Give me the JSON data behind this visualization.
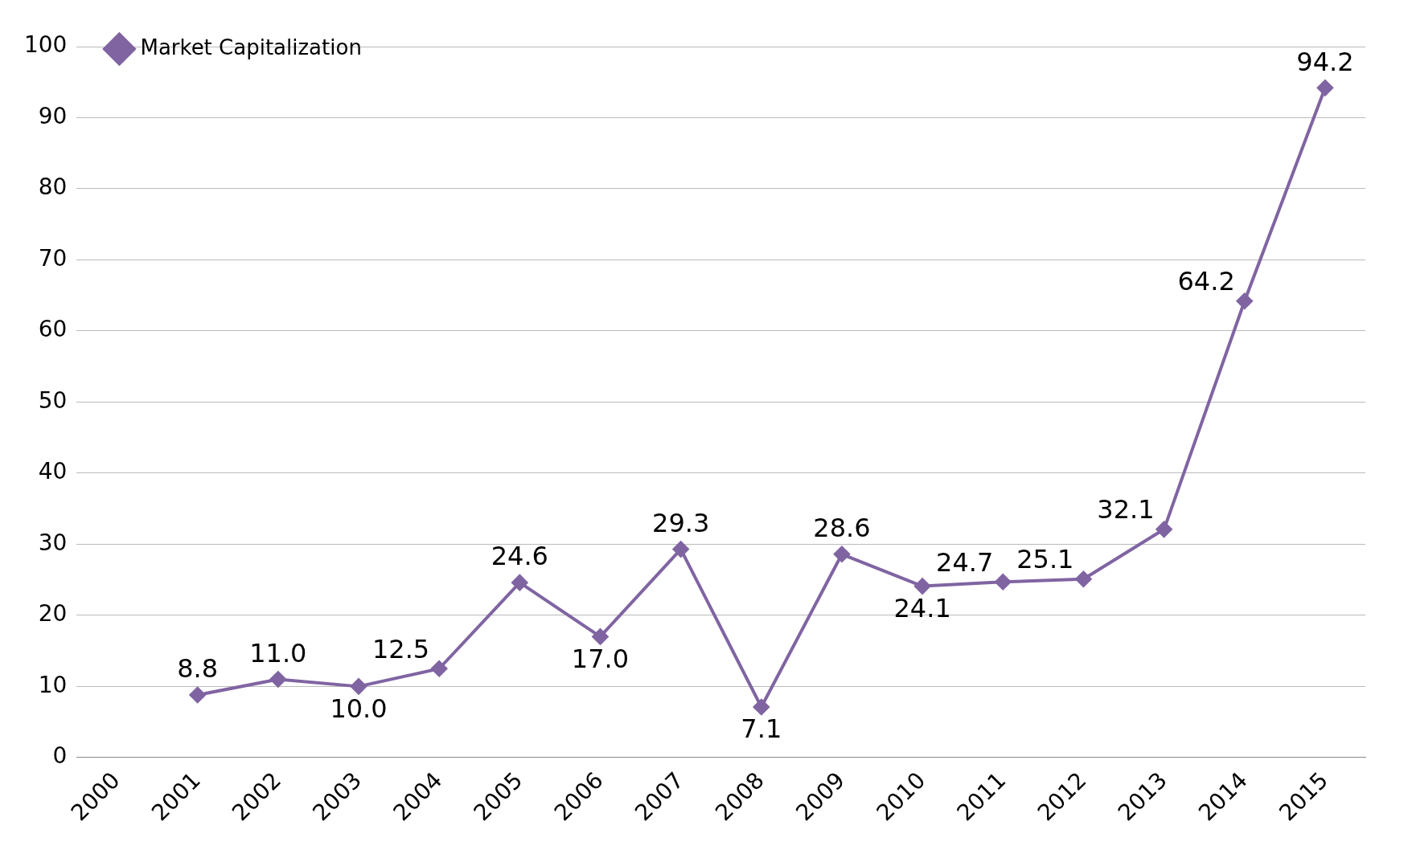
{
  "chart_data": {
    "type": "line",
    "categories": [
      "2000",
      "2001",
      "2002",
      "2003",
      "2004",
      "2005",
      "2006",
      "2007",
      "2008",
      "2009",
      "2010",
      "2011",
      "2012",
      "2013",
      "2014",
      "2015"
    ],
    "series": [
      {
        "name": "Market Capitalization",
        "color": "#8064a2",
        "values": [
          null,
          8.8,
          11.0,
          10.0,
          12.5,
          24.6,
          17.0,
          29.3,
          7.1,
          28.6,
          24.1,
          24.7,
          25.1,
          32.1,
          64.2,
          94.2
        ],
        "value_labels": [
          null,
          "8.8",
          "11.0",
          "10.0",
          "12.5",
          "24.6",
          "17.0",
          "29.3",
          "7.1",
          "28.6",
          "24.1",
          "24.7",
          "25.1",
          "32.1",
          "64.2",
          "94.2"
        ]
      }
    ],
    "ylim": [
      0,
      100
    ],
    "yticks": [
      0,
      10,
      20,
      30,
      40,
      50,
      60,
      70,
      80,
      90,
      100
    ],
    "grid": "y",
    "legend": "top left",
    "marker": "diamond",
    "line_style": "solid"
  }
}
